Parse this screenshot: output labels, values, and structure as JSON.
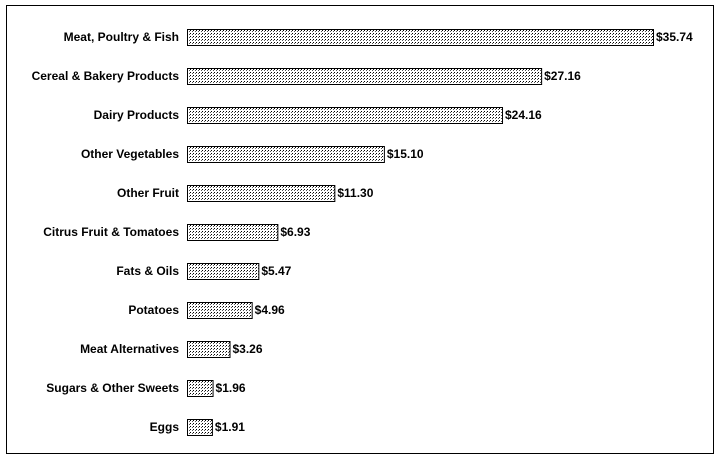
{
  "chart_data": {
    "type": "bar",
    "orientation": "horizontal",
    "categories": [
      "Meat, Poultry & Fish",
      "Cereal & Bakery Products",
      "Dairy Products",
      "Other Vegetables",
      "Other Fruit",
      "Citrus Fruit & Tomatoes",
      "Fats & Oils",
      "Potatoes",
      "Meat Alternatives",
      "Sugars & Other Sweets",
      "Eggs"
    ],
    "values": [
      35.74,
      27.16,
      24.16,
      15.1,
      11.3,
      6.93,
      5.47,
      4.96,
      3.26,
      1.96,
      1.91
    ],
    "value_labels": [
      "$35.74",
      "$27.16",
      "$24.16",
      "$15.10",
      "$11.30",
      "$6.93",
      "$5.47",
      "$4.96",
      "$3.26",
      "$1.96",
      "$1.91"
    ],
    "title": "",
    "xlabel": "",
    "ylabel": "",
    "xlim": [
      0,
      35.74
    ],
    "grid": false,
    "legend": "none",
    "colors": {
      "bar_fill_pattern": "stipple",
      "bar_fill_light": "#ffffff",
      "bar_fill_dot": "#000000",
      "bar_stroke": "#000000",
      "frame": "#000000"
    }
  }
}
